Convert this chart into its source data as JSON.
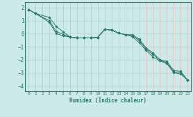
{
  "title": "",
  "xlabel": "Humidex (Indice chaleur)",
  "bg_color": "#cceae7",
  "line_color": "#2d7a70",
  "grid_color_v": "#e8b4b4",
  "grid_color_h": "#b8d8d4",
  "xlim": [
    -0.5,
    23.5
  ],
  "ylim": [
    -4.4,
    2.4
  ],
  "xticks": [
    0,
    1,
    2,
    3,
    4,
    5,
    6,
    7,
    8,
    9,
    10,
    11,
    12,
    13,
    14,
    15,
    16,
    17,
    18,
    19,
    20,
    21,
    22,
    23
  ],
  "yticks": [
    -4,
    -3,
    -2,
    -1,
    0,
    1,
    2
  ],
  "line1_x": [
    0,
    1,
    3,
    4,
    5,
    6,
    7,
    8,
    9,
    10,
    11,
    12,
    13,
    14,
    15,
    16,
    17,
    18,
    19,
    20,
    21,
    22,
    23
  ],
  "line1_y": [
    1.85,
    1.55,
    1.25,
    0.55,
    0.15,
    -0.25,
    -0.32,
    -0.32,
    -0.32,
    -0.28,
    0.33,
    0.28,
    0.05,
    -0.07,
    -0.22,
    -0.68,
    -1.28,
    -1.78,
    -2.08,
    -2.28,
    -2.98,
    -3.08,
    -3.55
  ],
  "line2_x": [
    0,
    1,
    3,
    4,
    5,
    6,
    7,
    8,
    9,
    10,
    11,
    12,
    13,
    14,
    15,
    16,
    17,
    18,
    19,
    20,
    21,
    22,
    23
  ],
  "line2_y": [
    1.85,
    1.55,
    1.0,
    0.18,
    -0.06,
    -0.25,
    -0.32,
    -0.32,
    -0.32,
    -0.28,
    0.33,
    0.28,
    0.05,
    -0.07,
    -0.12,
    -0.52,
    -1.18,
    -1.58,
    -2.02,
    -2.22,
    -2.92,
    -2.98,
    -3.55
  ],
  "line3_x": [
    0,
    1,
    3,
    4,
    5,
    6,
    7,
    8,
    9,
    10,
    11,
    12,
    13,
    14,
    15,
    16,
    17,
    18,
    19,
    20,
    21,
    22,
    23
  ],
  "line3_y": [
    1.85,
    1.55,
    0.88,
    0.02,
    -0.16,
    -0.25,
    -0.32,
    -0.32,
    -0.32,
    -0.28,
    0.33,
    0.28,
    0.05,
    -0.07,
    -0.08,
    -0.42,
    -1.08,
    -1.48,
    -1.98,
    -2.12,
    -2.82,
    -2.88,
    -3.55
  ]
}
